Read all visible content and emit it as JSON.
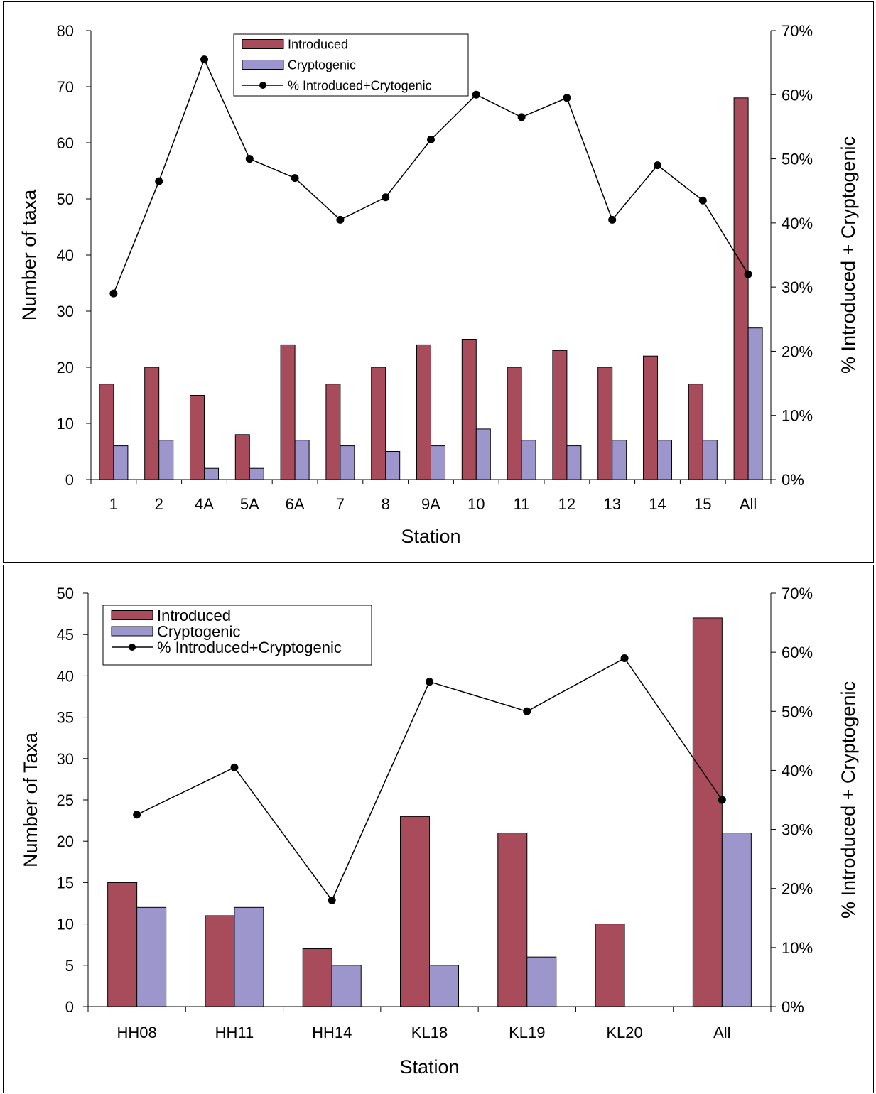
{
  "chart_data": [
    {
      "type": "bar",
      "categories": [
        "1",
        "2",
        "4A",
        "5A",
        "6A",
        "7",
        "8",
        "9A",
        "10",
        "11",
        "12",
        "13",
        "14",
        "15",
        "All"
      ],
      "series": [
        {
          "name": "Introduced",
          "kind": "bar",
          "axis": "left",
          "color": "#A84C5C",
          "values": [
            17,
            20,
            15,
            8,
            24,
            17,
            20,
            24,
            25,
            20,
            23,
            20,
            22,
            17,
            68
          ]
        },
        {
          "name": "Cryptogenic",
          "kind": "bar",
          "axis": "left",
          "color": "#9C96CC",
          "values": [
            6,
            7,
            2,
            2,
            7,
            6,
            5,
            6,
            9,
            7,
            6,
            7,
            7,
            7,
            27
          ]
        },
        {
          "name": "% Introduced+Crytogenic",
          "kind": "line",
          "axis": "right",
          "color": "#000000",
          "values": [
            0.29,
            0.465,
            0.655,
            0.5,
            0.47,
            0.405,
            0.44,
            0.53,
            0.6,
            0.565,
            0.595,
            0.405,
            0.49,
            0.435,
            0.32
          ]
        }
      ],
      "xlabel": "Station",
      "ylabel": "Number of taxa",
      "y2label": "% Introduced + Cryptogenic",
      "ylim": [
        0,
        80
      ],
      "yticks": [
        "0",
        "10",
        "20",
        "30",
        "40",
        "50",
        "60",
        "70",
        "80"
      ],
      "y2lim": [
        0,
        0.7
      ],
      "y2ticks": [
        "0%",
        "10%",
        "20%",
        "30%",
        "40%",
        "50%",
        "60%",
        "70%"
      ],
      "legend": "top-center",
      "grid": false
    },
    {
      "type": "bar",
      "categories": [
        "HH08",
        "HH11",
        "HH14",
        "KL18",
        "KL19",
        "KL20",
        "All"
      ],
      "series": [
        {
          "name": "Introduced",
          "kind": "bar",
          "axis": "left",
          "color": "#A84C5C",
          "values": [
            15,
            11,
            7,
            23,
            21,
            10,
            47
          ]
        },
        {
          "name": "Cryptogenic",
          "kind": "bar",
          "axis": "left",
          "color": "#9C96CC",
          "values": [
            12,
            12,
            5,
            5,
            6,
            0,
            21
          ]
        },
        {
          "name": "% Introduced+Cryptogenic",
          "kind": "line",
          "axis": "right",
          "color": "#000000",
          "values": [
            0.325,
            0.405,
            0.18,
            0.55,
            0.5,
            0.59,
            0.35
          ]
        }
      ],
      "xlabel": "Station",
      "ylabel": "Number of Taxa",
      "y2label": "% Introduced + Cryptogenic",
      "ylim": [
        0,
        50
      ],
      "yticks": [
        "0",
        "5",
        "10",
        "15",
        "20",
        "25",
        "30",
        "35",
        "40",
        "45",
        "50"
      ],
      "y2lim": [
        0,
        0.7
      ],
      "y2ticks": [
        "0%",
        "10%",
        "20%",
        "30%",
        "40%",
        "50%",
        "60%",
        "70%"
      ],
      "legend": "top-left",
      "grid": false
    }
  ]
}
